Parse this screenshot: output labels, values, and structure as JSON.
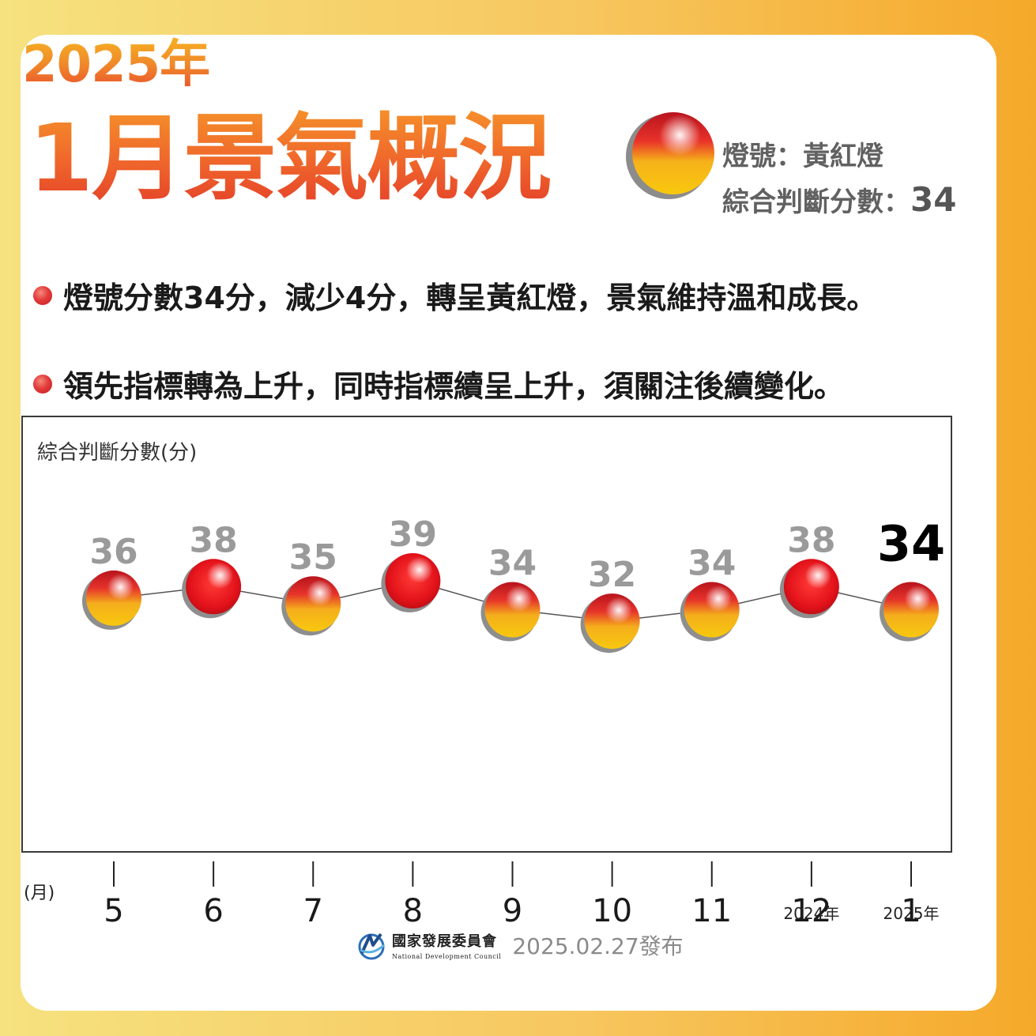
{
  "header": {
    "year_title": "2025年",
    "main_title": "1月景氣概況",
    "signal_label": "燈號：",
    "signal_value": "黃紅燈",
    "score_label": "綜合判斷分數：",
    "score_value": "34"
  },
  "bullets": [
    "燈號分數34分，減少4分，轉呈黃紅燈，景氣維持溫和成長。",
    "領先指標轉為上升，同時指標續呈上升，須關注後續變化。"
  ],
  "chart_data": {
    "type": "line",
    "ylabel": "綜合判斷分數(分)",
    "xlabel": "(月)",
    "categories": [
      "5",
      "6",
      "7",
      "8",
      "9",
      "10",
      "11",
      "12",
      "1"
    ],
    "values": [
      36,
      38,
      35,
      39,
      34,
      32,
      34,
      38,
      34
    ],
    "signals": [
      "黃紅燈",
      "紅燈",
      "黃紅燈",
      "紅燈",
      "黃紅燈",
      "黃紅燈",
      "黃紅燈",
      "紅燈",
      "黃紅燈"
    ],
    "year_notes": [
      {
        "category": "12",
        "text": "2024年"
      },
      {
        "category": "1",
        "text": "2025年"
      }
    ],
    "highlight_index": 8,
    "grid": false,
    "legend": "none"
  },
  "colors": {
    "red_light": "#e31b1b",
    "yellow_light": "#f6bb0c",
    "label_gray": "#9a9a9a",
    "highlight_label": "#000000"
  },
  "footer": {
    "org_name": "國家發展委員會",
    "org_name_en": "National Development Council",
    "release_date": "2025.02.27發布"
  }
}
